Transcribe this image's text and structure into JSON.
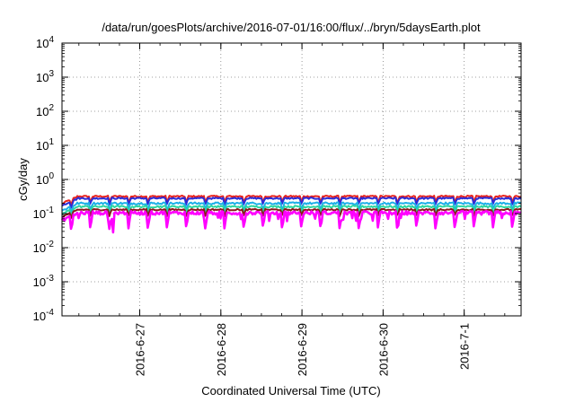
{
  "chart_data": {
    "type": "line",
    "title": "/data/run/goesPlots/archive/2016-07-01/16:00/flux/../bryn/5daysEarth.plot",
    "xlabel": "Coordinated Universal Time (UTC)",
    "ylabel": "cGy/day",
    "yscale": "log",
    "ylim": [
      0.0001,
      10000
    ],
    "xlim": [
      "2016-06-26 01:00",
      "2016-07-01 16:50"
    ],
    "y_ticks": [
      {
        "base": "10",
        "exp": "-4",
        "value": 0.0001
      },
      {
        "base": "10",
        "exp": "-3",
        "value": 0.001
      },
      {
        "base": "10",
        "exp": "-2",
        "value": 0.01
      },
      {
        "base": "10",
        "exp": "-1",
        "value": 0.1
      },
      {
        "base": "10",
        "exp": "0",
        "value": 1
      },
      {
        "base": "10",
        "exp": "1",
        "value": 10
      },
      {
        "base": "10",
        "exp": "2",
        "value": 100
      },
      {
        "base": "10",
        "exp": "3",
        "value": 1000
      },
      {
        "base": "10",
        "exp": "4",
        "value": 10000
      }
    ],
    "x_ticks": [
      {
        "label": "2016-6-27",
        "value": "2016-06-27 00:00"
      },
      {
        "label": "2016-6-28",
        "value": "2016-06-28 00:00"
      },
      {
        "label": "2016-6-29",
        "value": "2016-06-29 00:00"
      },
      {
        "label": "2016-6-30",
        "value": "2016-06-30 00:00"
      },
      {
        "label": "2016-7-1",
        "value": "2016-07-01 00:00"
      }
    ],
    "grid": true,
    "legend": "none",
    "series": [
      {
        "color": "#e8231e",
        "level": 0.32,
        "spread": 0.05
      },
      {
        "color": "#2b2bd6",
        "level": 0.28,
        "spread": 0.05
      },
      {
        "color": "#1cb0e8",
        "level": 0.2,
        "spread": 0.07
      },
      {
        "color": "#2bd6a0",
        "level": 0.16,
        "spread": 0.06
      },
      {
        "color": "#8a1a1a",
        "level": 0.13,
        "spread": 0.05
      },
      {
        "color": "#ff00ff",
        "level": 0.105,
        "spread": 0.12
      }
    ]
  }
}
